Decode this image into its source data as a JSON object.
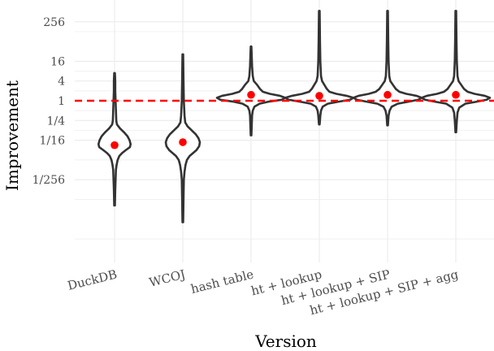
{
  "chart_data": {
    "type": "violin",
    "xlabel": "Version",
    "ylabel": "Improvement",
    "y_scale": "log2",
    "y_ticks": [
      {
        "label": "1/256",
        "value": 0.00390625
      },
      {
        "label": "1/16",
        "value": 0.0625
      },
      {
        "label": "1/4",
        "value": 0.25
      },
      {
        "label": "1",
        "value": 1
      },
      {
        "label": "4",
        "value": 4
      },
      {
        "label": "16",
        "value": 16
      },
      {
        "label": "256",
        "value": 256
      }
    ],
    "reference_line": {
      "value": 1,
      "style": "dashed",
      "color": "#ff0000"
    },
    "grid": true,
    "categories": [
      "DuckDB",
      "WCOJ",
      "hash table",
      "ht + lookup",
      "ht + lookup + SIP",
      "ht + lookup + SIP + agg"
    ],
    "series": [
      {
        "category": "DuckDB",
        "min_log2": -10.6,
        "max_log2": 2.8,
        "median_log2": -4.5,
        "density": [
          [
            -10.6,
            0.01
          ],
          [
            -9,
            0.02
          ],
          [
            -8,
            0.03
          ],
          [
            -7,
            0.04
          ],
          [
            -6.5,
            0.06
          ],
          [
            -6,
            0.09
          ],
          [
            -5.6,
            0.14
          ],
          [
            -5.3,
            0.22
          ],
          [
            -5,
            0.33
          ],
          [
            -4.7,
            0.45
          ],
          [
            -4.4,
            0.47
          ],
          [
            -4,
            0.44
          ],
          [
            -3.6,
            0.38
          ],
          [
            -3.2,
            0.28
          ],
          [
            -2.8,
            0.16
          ],
          [
            -2.4,
            0.07
          ],
          [
            -2,
            0.05
          ],
          [
            -1,
            0.04
          ],
          [
            0,
            0.03
          ],
          [
            1,
            0.02
          ],
          [
            2,
            0.02
          ],
          [
            2.8,
            0.01
          ]
        ]
      },
      {
        "category": "WCOJ",
        "min_log2": -12.3,
        "max_log2": 4.7,
        "median_log2": -4.2,
        "density": [
          [
            -12.3,
            0.01
          ],
          [
            -10,
            0.02
          ],
          [
            -8,
            0.03
          ],
          [
            -7.2,
            0.05
          ],
          [
            -6.5,
            0.08
          ],
          [
            -6,
            0.12
          ],
          [
            -5.6,
            0.2
          ],
          [
            -5.3,
            0.3
          ],
          [
            -5,
            0.4
          ],
          [
            -4.6,
            0.48
          ],
          [
            -4.2,
            0.5
          ],
          [
            -3.8,
            0.46
          ],
          [
            -3.4,
            0.38
          ],
          [
            -3,
            0.26
          ],
          [
            -2.6,
            0.14
          ],
          [
            -2.2,
            0.07
          ],
          [
            -1.5,
            0.05
          ],
          [
            0,
            0.03
          ],
          [
            2,
            0.02
          ],
          [
            4.7,
            0.01
          ]
        ]
      },
      {
        "category": "hash table",
        "min_log2": -3.5,
        "max_log2": 5.5,
        "median_log2": 0.6,
        "density": [
          [
            -3.5,
            0.01
          ],
          [
            -2.5,
            0.02
          ],
          [
            -1.5,
            0.03
          ],
          [
            -1,
            0.05
          ],
          [
            -0.6,
            0.1
          ],
          [
            -0.3,
            0.25
          ],
          [
            -0.1,
            0.5
          ],
          [
            0.1,
            0.9
          ],
          [
            0.3,
            1.0
          ],
          [
            0.5,
            0.85
          ],
          [
            0.7,
            0.55
          ],
          [
            0.9,
            0.35
          ],
          [
            1.2,
            0.26
          ],
          [
            1.6,
            0.18
          ],
          [
            2,
            0.08
          ],
          [
            2.5,
            0.05
          ],
          [
            3.5,
            0.03
          ],
          [
            4.5,
            0.02
          ],
          [
            5.5,
            0.01
          ]
        ]
      },
      {
        "category": "ht + lookup",
        "min_log2": -2.4,
        "max_log2": 9.1,
        "median_log2": 0.5,
        "density": [
          [
            -2.4,
            0.01
          ],
          [
            -1.5,
            0.03
          ],
          [
            -1,
            0.05
          ],
          [
            -0.6,
            0.1
          ],
          [
            -0.3,
            0.25
          ],
          [
            -0.1,
            0.55
          ],
          [
            0.1,
            0.9
          ],
          [
            0.3,
            1.0
          ],
          [
            0.5,
            0.8
          ],
          [
            0.7,
            0.5
          ],
          [
            0.9,
            0.3
          ],
          [
            1.2,
            0.22
          ],
          [
            1.6,
            0.15
          ],
          [
            2,
            0.08
          ],
          [
            2.5,
            0.05
          ],
          [
            4,
            0.03
          ],
          [
            6,
            0.02
          ],
          [
            9.1,
            0.01
          ]
        ]
      },
      {
        "category": "ht + lookup + SIP",
        "min_log2": -2.5,
        "max_log2": 9.1,
        "median_log2": 0.6,
        "density": [
          [
            -2.5,
            0.01
          ],
          [
            -1.5,
            0.03
          ],
          [
            -1,
            0.06
          ],
          [
            -0.6,
            0.12
          ],
          [
            -0.3,
            0.3
          ],
          [
            -0.1,
            0.6
          ],
          [
            0.1,
            0.9
          ],
          [
            0.3,
            1.0
          ],
          [
            0.5,
            0.85
          ],
          [
            0.7,
            0.55
          ],
          [
            0.9,
            0.35
          ],
          [
            1.2,
            0.24
          ],
          [
            1.6,
            0.16
          ],
          [
            2,
            0.08
          ],
          [
            2.5,
            0.05
          ],
          [
            4,
            0.03
          ],
          [
            6,
            0.02
          ],
          [
            9.1,
            0.01
          ]
        ]
      },
      {
        "category": "ht + lookup + SIP + agg",
        "min_log2": -3.2,
        "max_log2": 9.1,
        "median_log2": 0.6,
        "density": [
          [
            -3.2,
            0.01
          ],
          [
            -2,
            0.03
          ],
          [
            -1.2,
            0.05
          ],
          [
            -0.7,
            0.1
          ],
          [
            -0.3,
            0.28
          ],
          [
            -0.1,
            0.6
          ],
          [
            0.1,
            0.9
          ],
          [
            0.3,
            1.0
          ],
          [
            0.5,
            0.85
          ],
          [
            0.7,
            0.55
          ],
          [
            0.9,
            0.35
          ],
          [
            1.2,
            0.24
          ],
          [
            1.6,
            0.16
          ],
          [
            2,
            0.08
          ],
          [
            2.5,
            0.05
          ],
          [
            4,
            0.03
          ],
          [
            6,
            0.02
          ],
          [
            9.1,
            0.01
          ]
        ]
      }
    ],
    "colors": {
      "outline": "#333333",
      "median_point": "#ff0000",
      "reference_line": "#ff0000",
      "grid": "#ebebeb"
    }
  }
}
